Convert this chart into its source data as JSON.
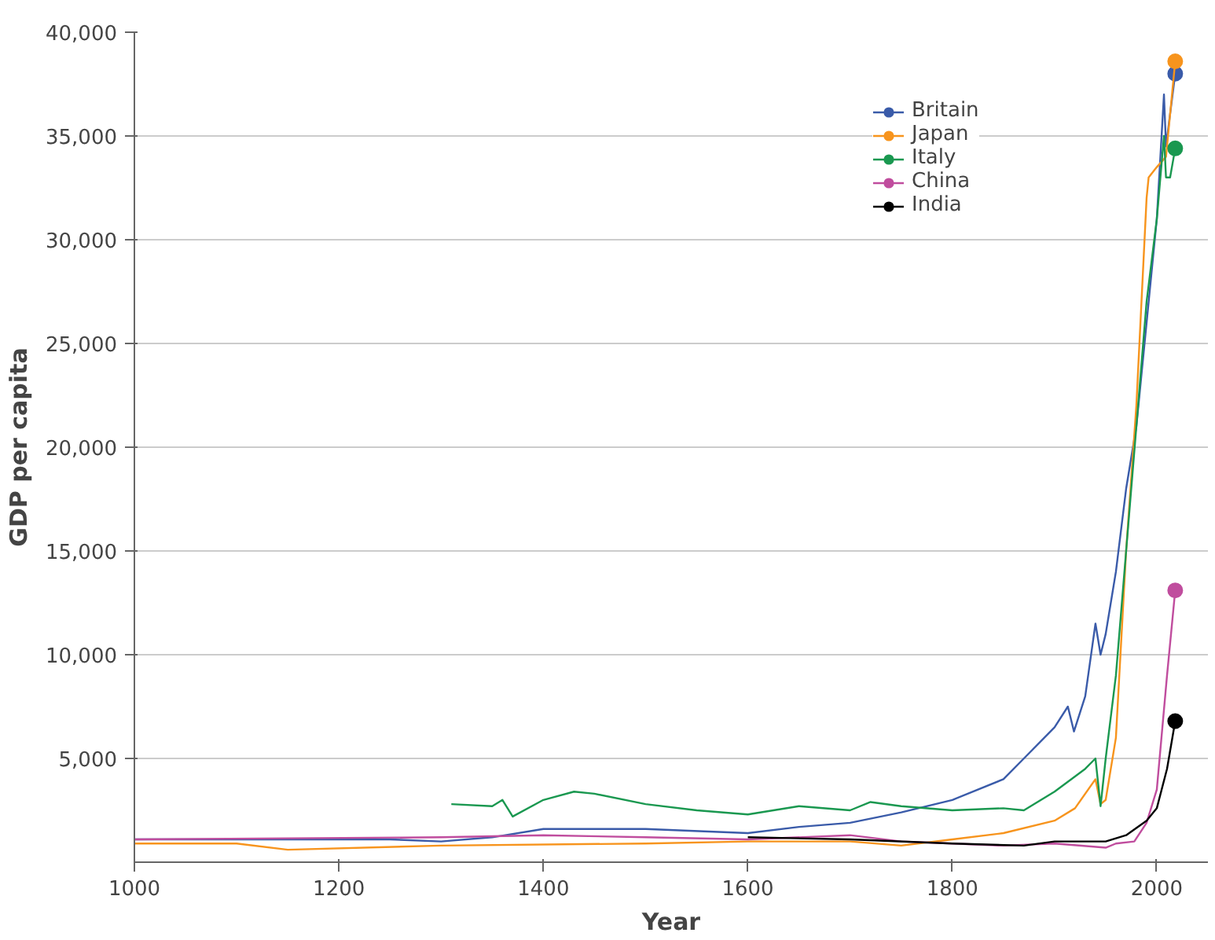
{
  "chart_data": {
    "type": "line",
    "xlabel": "Year",
    "ylabel": "GDP per capita",
    "xlim": [
      1000,
      2050
    ],
    "ylim": [
      0,
      40000
    ],
    "xticks": [
      1000,
      1200,
      1400,
      1600,
      1800,
      2000
    ],
    "yticks": [
      {
        "value": 5000,
        "label": "5,000"
      },
      {
        "value": 10000,
        "label": "10,000"
      },
      {
        "value": 15000,
        "label": "15,000"
      },
      {
        "value": 20000,
        "label": "20,000"
      },
      {
        "value": 25000,
        "label": "25,000"
      },
      {
        "value": 30000,
        "label": "30,000"
      },
      {
        "value": 35000,
        "label": "35,000"
      },
      {
        "value": 40000,
        "label": "40,000"
      }
    ],
    "grid": "y",
    "legend": "top right",
    "line_style": "solid",
    "series": [
      {
        "name": "Britain",
        "color": "#3a5ba9",
        "x": [
          1000,
          1250,
          1300,
          1350,
          1400,
          1500,
          1600,
          1650,
          1700,
          1750,
          1800,
          1850,
          1870,
          1900,
          1913,
          1919,
          1930,
          1940,
          1945,
          1950,
          1960,
          1970,
          1980,
          1990,
          2000,
          2007,
          2009,
          2018
        ],
        "values": [
          1100,
          1100,
          1000,
          1200,
          1600,
          1600,
          1400,
          1700,
          1900,
          2400,
          3000,
          4000,
          5000,
          6500,
          7500,
          6300,
          8000,
          11500,
          10000,
          11000,
          14000,
          18000,
          21000,
          26000,
          31000,
          37000,
          34500,
          38000
        ]
      },
      {
        "color": "#3a5ba9",
        "type": "scatter",
        "x": [
          2018
        ],
        "values": [
          38000
        ]
      },
      {
        "name": "Japan",
        "color": "#f7941d",
        "x": [
          1000,
          1100,
          1150,
          1300,
          1500,
          1600,
          1700,
          1750,
          1800,
          1850,
          1900,
          1920,
          1940,
          1945,
          1950,
          1960,
          1970,
          1980,
          1990,
          1992,
          2000,
          2009,
          2018
        ],
        "values": [
          900,
          900,
          600,
          800,
          900,
          1000,
          1000,
          800,
          1100,
          1400,
          2000,
          2600,
          4000,
          2800,
          3000,
          6000,
          15000,
          22000,
          32000,
          33000,
          33500,
          34000,
          38600
        ]
      },
      {
        "color": "#f7941d",
        "type": "scatter",
        "x": [
          2018
        ],
        "values": [
          38600
        ]
      },
      {
        "name": "Italy",
        "color": "#1a9850",
        "x": [
          1310,
          1350,
          1360,
          1370,
          1400,
          1430,
          1450,
          1500,
          1550,
          1600,
          1650,
          1700,
          1720,
          1750,
          1800,
          1850,
          1870,
          1900,
          1930,
          1940,
          1945,
          1950,
          1960,
          1970,
          1980,
          1990,
          2000,
          2007,
          2009,
          2013,
          2018
        ],
        "values": [
          2800,
          2700,
          3000,
          2200,
          3000,
          3400,
          3300,
          2800,
          2500,
          2300,
          2700,
          2500,
          2900,
          2700,
          2500,
          2600,
          2500,
          3400,
          4500,
          5000,
          2700,
          5000,
          9000,
          15000,
          21000,
          27000,
          31000,
          35000,
          33000,
          33000,
          34400
        ]
      },
      {
        "color": "#1a9850",
        "type": "scatter",
        "x": [
          2018
        ],
        "values": [
          34400
        ]
      },
      {
        "name": "China",
        "color": "#c04d9e",
        "x": [
          1000,
          1300,
          1400,
          1500,
          1600,
          1700,
          1750,
          1800,
          1850,
          1900,
          1950,
          1960,
          1978,
          1990,
          2000,
          2010,
          2018
        ],
        "values": [
          1100,
          1200,
          1300,
          1200,
          1100,
          1300,
          1000,
          900,
          800,
          900,
          700,
          900,
          1000,
          1900,
          3500,
          9000,
          13100
        ]
      },
      {
        "color": "#c04d9e",
        "type": "scatter",
        "x": [
          2018
        ],
        "values": [
          13100
        ]
      },
      {
        "name": "India",
        "color": "#000000",
        "x": [
          1600,
          1700,
          1800,
          1870,
          1900,
          1940,
          1950,
          1970,
          1990,
          2000,
          2010,
          2018
        ],
        "values": [
          1200,
          1100,
          900,
          800,
          1000,
          1000,
          1000,
          1300,
          2000,
          2600,
          4500,
          6800
        ]
      },
      {
        "color": "#000000",
        "type": "scatter",
        "x": [
          2018
        ],
        "values": [
          6800
        ]
      }
    ]
  }
}
